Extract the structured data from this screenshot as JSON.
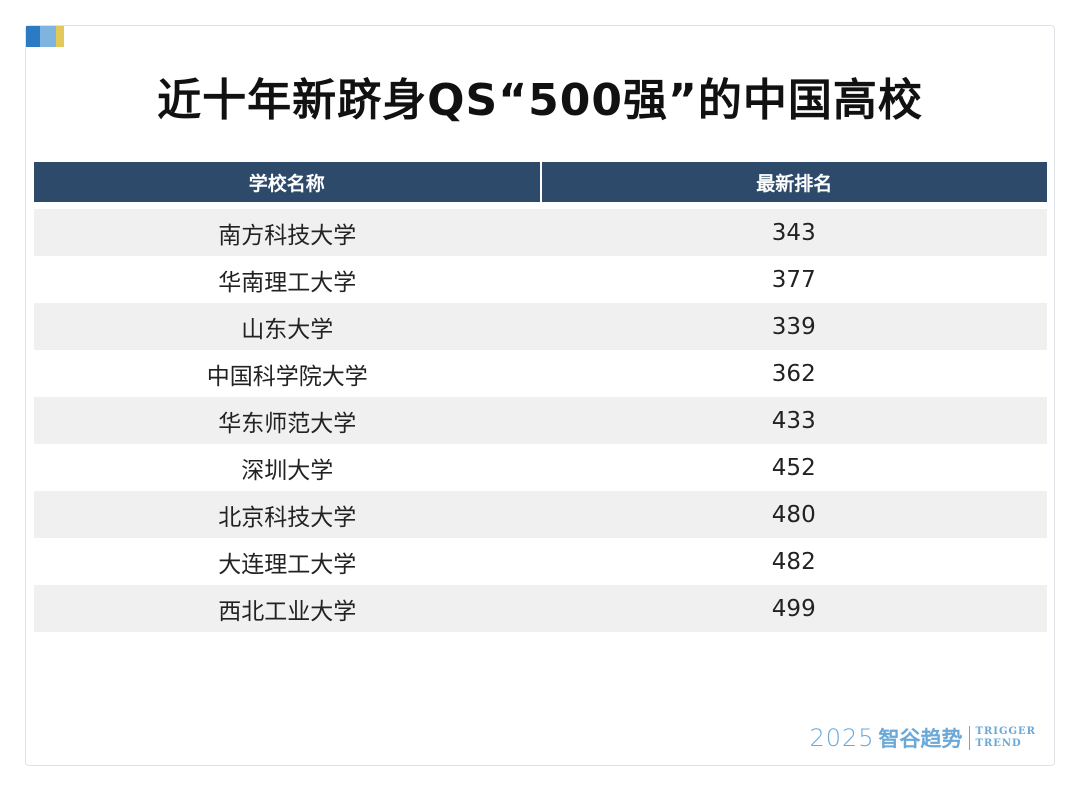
{
  "title": "近十年新跻身QS“500强”的中国高校",
  "table": {
    "headers": [
      "学校名称",
      "最新排名"
    ],
    "rows": [
      {
        "school": "南方科技大学",
        "rank": "343"
      },
      {
        "school": "华南理工大学",
        "rank": "377"
      },
      {
        "school": "山东大学",
        "rank": "339"
      },
      {
        "school": "中国科学院大学",
        "rank": "362"
      },
      {
        "school": "华东师范大学",
        "rank": "433"
      },
      {
        "school": "深圳大学",
        "rank": "452"
      },
      {
        "school": "北京科技大学",
        "rank": "480"
      },
      {
        "school": "大连理工大学",
        "rank": "482"
      },
      {
        "school": "西北工业大学",
        "rank": "499"
      }
    ]
  },
  "footer": {
    "year": "2025",
    "brand_cn": "智谷趋势",
    "brand_en_line1": "TRIGGER",
    "brand_en_line2": "TREND"
  },
  "colors": {
    "header_bg": "#2e4a6b",
    "stripe_bg": "#f0f0f0",
    "accent_1": "#2a7bc4",
    "accent_2": "#7fb3e0",
    "accent_3": "#e2c95a",
    "brand_blue": "#6aa8d8"
  }
}
